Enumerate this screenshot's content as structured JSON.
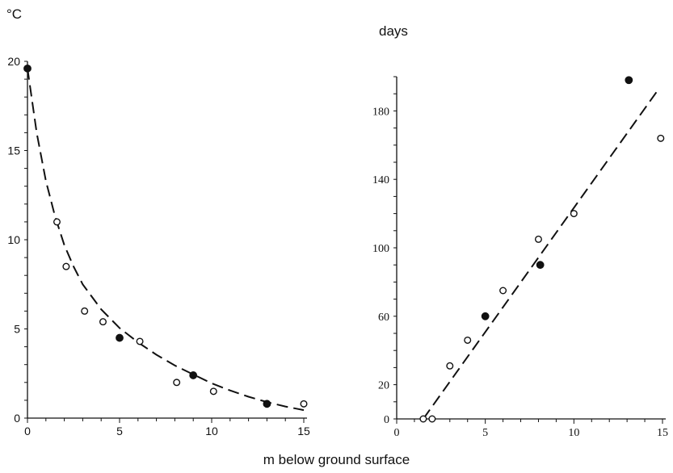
{
  "labels": {
    "left_y_unit": "°C",
    "right_y_unit": "days",
    "x_label": "m below ground surface"
  },
  "chart_data": [
    {
      "type": "scatter",
      "title": "",
      "xlabel": "m below ground surface",
      "ylabel": "°C",
      "xlim": [
        0,
        15
      ],
      "ylim": [
        0,
        20
      ],
      "x_ticks": [
        "0",
        "5",
        "10",
        "15"
      ],
      "y_ticks": [
        "0",
        "5",
        "10",
        "15",
        "20"
      ],
      "grid": false,
      "series": [
        {
          "marker": "filled",
          "points": [
            [
              0,
              19.6
            ],
            [
              5,
              4.5
            ],
            [
              9,
              2.4
            ],
            [
              13,
              0.8
            ]
          ]
        },
        {
          "marker": "open",
          "points": [
            [
              1.6,
              11
            ],
            [
              2.1,
              8.5
            ],
            [
              3.1,
              6
            ],
            [
              4.1,
              5.4
            ],
            [
              6.1,
              4.3
            ],
            [
              8.1,
              2
            ],
            [
              10.1,
              1.5
            ],
            [
              15,
              0.8
            ]
          ]
        }
      ],
      "trend": {
        "style": "dashed",
        "points": [
          [
            0,
            19.6
          ],
          [
            0.5,
            16.0
          ],
          [
            1,
            13.3
          ],
          [
            1.5,
            11.3
          ],
          [
            2,
            9.7
          ],
          [
            2.5,
            8.5
          ],
          [
            3,
            7.5
          ],
          [
            4,
            6.1
          ],
          [
            5,
            5.05
          ],
          [
            6,
            4.25
          ],
          [
            7,
            3.55
          ],
          [
            8,
            2.95
          ],
          [
            9,
            2.45
          ],
          [
            10,
            1.95
          ],
          [
            11,
            1.55
          ],
          [
            12,
            1.2
          ],
          [
            13,
            0.9
          ],
          [
            14,
            0.65
          ],
          [
            15,
            0.45
          ]
        ]
      }
    },
    {
      "type": "scatter",
      "title": "",
      "xlabel": "m below ground surface",
      "ylabel": "days",
      "xlim": [
        0,
        15
      ],
      "ylim": [
        0,
        200
      ],
      "x_ticks": [
        "0",
        "5",
        "10",
        "15"
      ],
      "y_ticks": [
        "0",
        "20",
        "60",
        "100",
        "140",
        "180"
      ],
      "grid": false,
      "series": [
        {
          "marker": "filled",
          "points": [
            [
              5,
              60
            ],
            [
              8.1,
              90
            ],
            [
              13.1,
              198
            ]
          ]
        },
        {
          "marker": "open",
          "points": [
            [
              1.5,
              0
            ],
            [
              2,
              0
            ],
            [
              3,
              31
            ],
            [
              4,
              46
            ],
            [
              6,
              75
            ],
            [
              8,
              105
            ],
            [
              10,
              120
            ],
            [
              14.9,
              164
            ]
          ]
        }
      ],
      "trend": {
        "style": "dashed",
        "points": [
          [
            1.5,
            0
          ],
          [
            14.8,
            193
          ]
        ]
      }
    }
  ]
}
